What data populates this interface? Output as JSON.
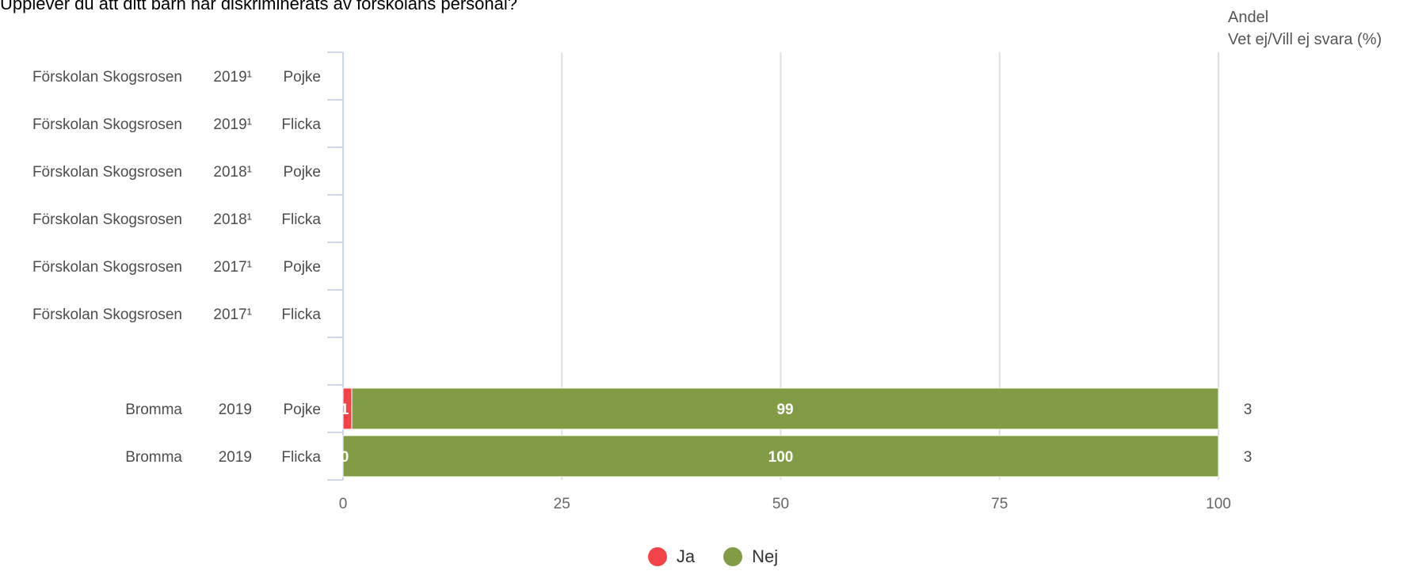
{
  "title": "Upplever du att ditt barn har diskriminerats av förskolans personal?",
  "right_header": {
    "line1": "Andel",
    "line2": "Vet ej/Vill ej svara (%)"
  },
  "legend": [
    {
      "name": "Ja",
      "color": "#f24448"
    },
    {
      "name": "Nej",
      "color": "#819c44"
    }
  ],
  "chart_data": {
    "type": "bar",
    "orientation": "horizontal",
    "stacked": true,
    "xlim": [
      0,
      100
    ],
    "xticks": [
      "0",
      "25",
      "50",
      "75",
      "100"
    ],
    "grid": true,
    "legend_position": "bottom",
    "rows": [
      {
        "label1": "Förskolan Skogsrosen",
        "label2": "2019¹",
        "label3": "Pojke",
        "ja": null,
        "nej": null,
        "ja_label": "",
        "nej_label": "",
        "extra": ""
      },
      {
        "label1": "Förskolan Skogsrosen",
        "label2": "2019¹",
        "label3": "Flicka",
        "ja": null,
        "nej": null,
        "ja_label": "",
        "nej_label": "",
        "extra": ""
      },
      {
        "label1": "Förskolan Skogsrosen",
        "label2": "2018¹",
        "label3": "Pojke",
        "ja": null,
        "nej": null,
        "ja_label": "",
        "nej_label": "",
        "extra": ""
      },
      {
        "label1": "Förskolan Skogsrosen",
        "label2": "2018¹",
        "label3": "Flicka",
        "ja": null,
        "nej": null,
        "ja_label": "",
        "nej_label": "",
        "extra": ""
      },
      {
        "label1": "Förskolan Skogsrosen",
        "label2": "2017¹",
        "label3": "Pojke",
        "ja": null,
        "nej": null,
        "ja_label": "",
        "nej_label": "",
        "extra": ""
      },
      {
        "label1": "Förskolan Skogsrosen",
        "label2": "2017¹",
        "label3": "Flicka",
        "ja": null,
        "nej": null,
        "ja_label": "",
        "nej_label": "",
        "extra": ""
      },
      {
        "label1": "",
        "label2": "",
        "label3": "",
        "ja": null,
        "nej": null,
        "ja_label": "",
        "nej_label": "",
        "extra": ""
      },
      {
        "label1": "Bromma",
        "label2": "2019",
        "label3": "Pojke",
        "ja": 1,
        "nej": 99,
        "ja_label": "1",
        "nej_label": "99",
        "extra": "3"
      },
      {
        "label1": "Bromma",
        "label2": "2019",
        "label3": "Flicka",
        "ja": 0,
        "nej": 100,
        "ja_label": "0",
        "nej_label": "100",
        "extra": "3"
      }
    ]
  }
}
